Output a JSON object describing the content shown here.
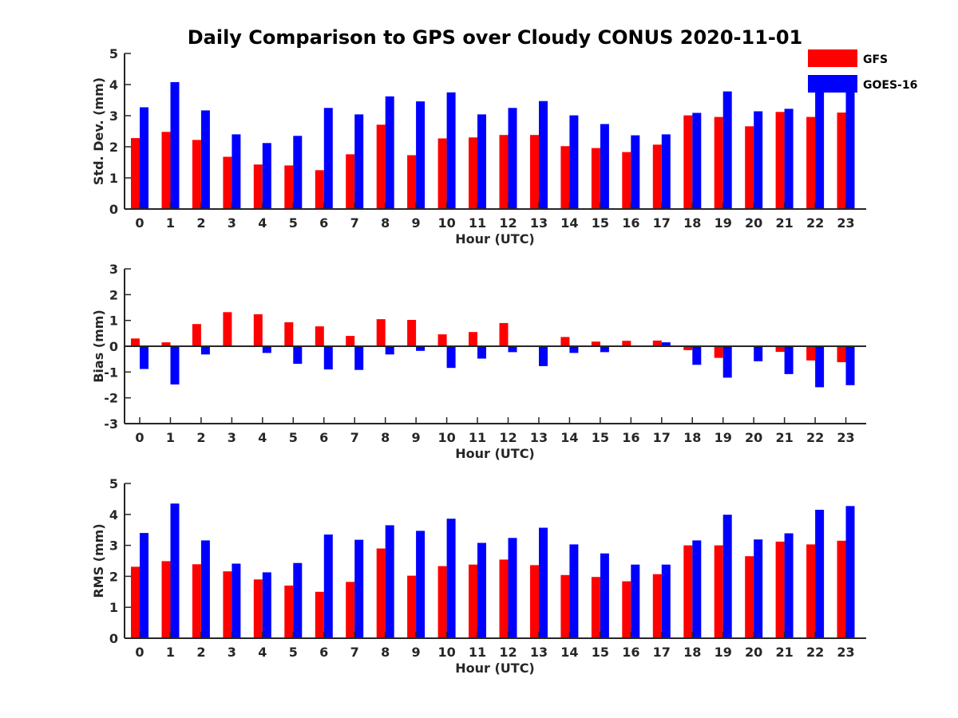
{
  "title": "Daily Comparison to GPS over Cloudy CONUS 2020-11-01",
  "colors": {
    "GFS": "#ff0000",
    "GOES-16": "#0000ff",
    "axis": "#262626"
  },
  "legend": {
    "placement": "top-right",
    "entries": [
      "GFS",
      "GOES-16"
    ]
  },
  "chart_data": [
    {
      "type": "bar",
      "xlabel": "Hour (UTC)",
      "ylabel": "Std. Dev. (mm)",
      "ylim": [
        0,
        5
      ],
      "yticks": [
        0,
        1,
        2,
        3,
        4,
        5
      ],
      "categories": [
        "0",
        "1",
        "2",
        "3",
        "4",
        "5",
        "6",
        "7",
        "8",
        "9",
        "10",
        "11",
        "12",
        "13",
        "14",
        "15",
        "16",
        "17",
        "18",
        "19",
        "20",
        "21",
        "22",
        "23"
      ],
      "series": [
        {
          "name": "GFS",
          "values": [
            2.28,
            2.48,
            2.22,
            1.68,
            1.43,
            1.4,
            1.25,
            1.76,
            2.71,
            1.73,
            2.27,
            2.3,
            2.38,
            2.38,
            2.02,
            1.96,
            1.83,
            2.07,
            3.01,
            2.96,
            2.66,
            3.12,
            2.96,
            3.1
          ]
        },
        {
          "name": "GOES-16",
          "values": [
            3.27,
            4.08,
            3.17,
            2.4,
            2.12,
            2.35,
            3.25,
            3.04,
            3.62,
            3.46,
            3.75,
            3.04,
            3.25,
            3.47,
            3.01,
            2.73,
            2.37,
            2.4,
            3.09,
            3.78,
            3.14,
            3.22,
            3.8,
            3.91
          ]
        }
      ]
    },
    {
      "type": "bar",
      "xlabel": "Hour (UTC)",
      "ylabel": "Bias (mm)",
      "ylim": [
        -3,
        3
      ],
      "yticks": [
        -3,
        -2,
        -1,
        0,
        1,
        2,
        3
      ],
      "categories": [
        "0",
        "1",
        "2",
        "3",
        "4",
        "5",
        "6",
        "7",
        "8",
        "9",
        "10",
        "11",
        "12",
        "13",
        "14",
        "15",
        "16",
        "17",
        "18",
        "19",
        "20",
        "21",
        "22",
        "23"
      ],
      "series": [
        {
          "name": "GFS",
          "values": [
            0.3,
            0.15,
            0.86,
            1.32,
            1.24,
            0.93,
            0.77,
            0.4,
            1.05,
            1.02,
            0.46,
            0.55,
            0.9,
            0.03,
            0.36,
            0.18,
            0.21,
            0.22,
            -0.15,
            -0.45,
            0.02,
            -0.22,
            -0.55,
            -0.62
          ]
        },
        {
          "name": "GOES-16",
          "values": [
            -0.88,
            -1.48,
            -0.32,
            0.0,
            -0.26,
            -0.68,
            -0.9,
            -0.92,
            -0.32,
            -0.18,
            -0.84,
            -0.48,
            -0.23,
            -0.77,
            -0.26,
            -0.23,
            0.02,
            0.15,
            -0.72,
            -1.22,
            -0.58,
            -1.08,
            -1.59,
            -1.51
          ]
        }
      ]
    },
    {
      "type": "bar",
      "xlabel": "Hour (UTC)",
      "ylabel": "RMS (mm)",
      "ylim": [
        0,
        5
      ],
      "yticks": [
        0,
        1,
        2,
        3,
        4,
        5
      ],
      "categories": [
        "0",
        "1",
        "2",
        "3",
        "4",
        "5",
        "6",
        "7",
        "8",
        "9",
        "10",
        "11",
        "12",
        "13",
        "14",
        "15",
        "16",
        "17",
        "18",
        "19",
        "20",
        "21",
        "22",
        "23"
      ],
      "series": [
        {
          "name": "GFS",
          "values": [
            2.31,
            2.49,
            2.39,
            2.16,
            1.9,
            1.7,
            1.5,
            1.82,
            2.9,
            2.02,
            2.33,
            2.38,
            2.54,
            2.36,
            2.04,
            1.98,
            1.84,
            2.07,
            3.0,
            3.0,
            2.65,
            3.12,
            3.03,
            3.15
          ]
        },
        {
          "name": "GOES-16",
          "values": [
            3.4,
            4.35,
            3.16,
            2.41,
            2.13,
            2.43,
            3.35,
            3.18,
            3.65,
            3.47,
            3.86,
            3.08,
            3.24,
            3.57,
            3.03,
            2.74,
            2.38,
            2.38,
            3.16,
            3.99,
            3.19,
            3.39,
            4.15,
            4.27
          ]
        }
      ]
    }
  ]
}
